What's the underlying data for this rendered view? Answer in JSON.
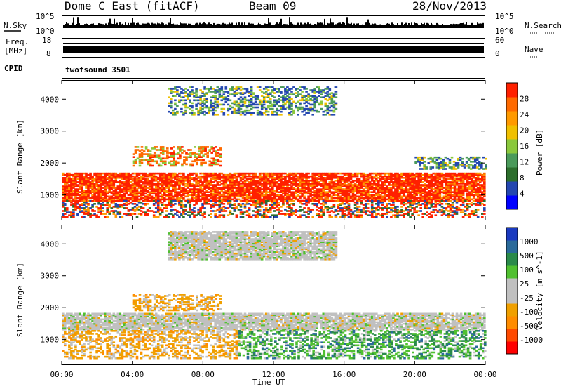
{
  "header": {
    "station": "Dome C East (fitACF)",
    "beam": "Beam 09",
    "date": "28/Nov/2013"
  },
  "panels": {
    "nsky": {
      "label": "N.Sky",
      "top_tick": "10^5",
      "bottom_tick": "10^0",
      "right_top_tick": "10^5",
      "right_bottom_tick": "10^0",
      "right_label": "N.Search"
    },
    "freq": {
      "label_line1": "Freq.",
      "label_line2": "[MHz]",
      "top_tick": "18",
      "bottom_tick": "8",
      "right_top_tick": "60",
      "right_bottom_tick": "0",
      "right_label": "Nave"
    },
    "cpid": {
      "label": "CPID",
      "value": "twofsound 3501"
    }
  },
  "colors": {
    "power_scale": [
      "#0000ff",
      "#2447b0",
      "#2c6e2c",
      "#4a9a5a",
      "#8ac83c",
      "#f0c000",
      "#ff9a00",
      "#ff6a00",
      "#ff2000"
    ],
    "velocity_scale": [
      "#ff0000",
      "#ff4a00",
      "#ff8c00",
      "#f0a000",
      "#c0c0c0",
      "#c0c0c0",
      "#50c030",
      "#2a8a4a",
      "#2a6a9a",
      "#1a3ac0"
    ]
  },
  "chart_data": [
    {
      "type": "heatmap",
      "name": "power",
      "xlabel": "",
      "ylabel": "Slant Range [km]",
      "xlim": [
        "00:00",
        "24:00"
      ],
      "ylim": [
        200,
        4600
      ],
      "y_ticks": [
        "1000",
        "2000",
        "3000",
        "4000"
      ],
      "colorbar": {
        "label": "Power [dB]",
        "ticks": [
          "4",
          "8",
          "12",
          "16",
          "20",
          "24",
          "28"
        ]
      },
      "bands": [
        {
          "t0": 0.0,
          "t1": 24.0,
          "r0": 800,
          "r1": 1700,
          "level": "high"
        },
        {
          "t0": 0.0,
          "t1": 24.0,
          "r0": 300,
          "r1": 800,
          "level": "mixed"
        },
        {
          "t0": 4.0,
          "t1": 9.0,
          "r0": 1900,
          "r1": 2500,
          "level": "mid"
        },
        {
          "t0": 6.0,
          "t1": 15.5,
          "r0": 3500,
          "r1": 4400,
          "level": "low-mid"
        },
        {
          "t0": 20.0,
          "t1": 24.0,
          "r0": 1800,
          "r1": 2200,
          "level": "low-mid"
        }
      ]
    },
    {
      "type": "heatmap",
      "name": "velocity",
      "xlabel": "Time UT",
      "ylabel": "Slant Range [km]",
      "xlim": [
        "00:00",
        "24:00"
      ],
      "ylim": [
        200,
        4600
      ],
      "x_ticks": [
        "00:00",
        "04:00",
        "08:00",
        "12:00",
        "16:00",
        "20:00",
        "00:00"
      ],
      "y_ticks": [
        "1000",
        "2000",
        "3000",
        "4000"
      ],
      "colorbar": {
        "label": "Velocity [m s^-1]",
        "ticks": [
          "1000",
          "500",
          "100",
          "25",
          "-25",
          "-100",
          "-500",
          "-1000"
        ]
      },
      "bands": [
        {
          "t0": 0.0,
          "t1": 24.0,
          "r0": 1300,
          "r1": 1800,
          "level": "near-zero"
        },
        {
          "t0": 0.0,
          "t1": 10.0,
          "r0": 400,
          "r1": 1300,
          "level": "negative"
        },
        {
          "t0": 10.0,
          "t1": 24.0,
          "r0": 400,
          "r1": 1300,
          "level": "positive"
        },
        {
          "t0": 4.0,
          "t1": 9.0,
          "r0": 1900,
          "r1": 2400,
          "level": "negative"
        },
        {
          "t0": 6.0,
          "t1": 15.5,
          "r0": 3500,
          "r1": 4400,
          "level": "near-zero"
        }
      ]
    }
  ]
}
